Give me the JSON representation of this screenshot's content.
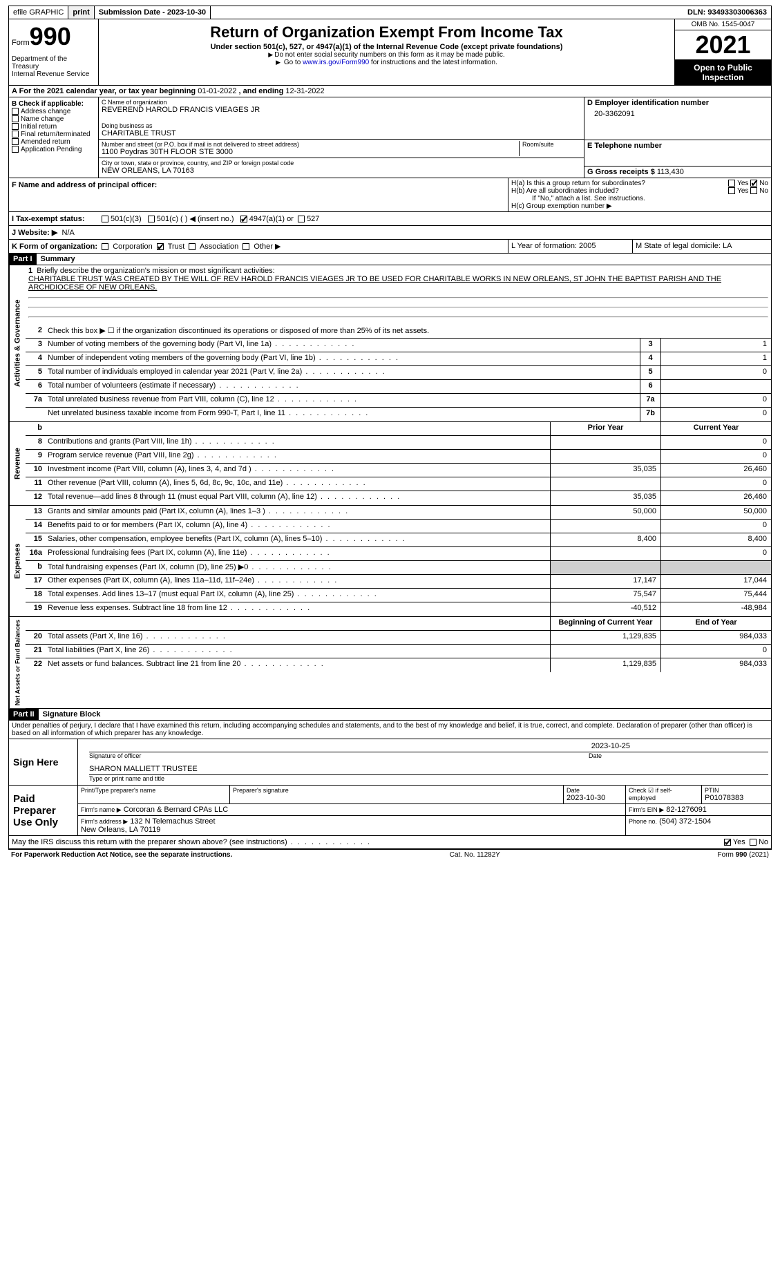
{
  "topbar": {
    "efile": "efile GRAPHIC",
    "print": "print",
    "subdate_lbl": "Submission Date - 2023-10-30",
    "dln": "DLN: 93493303006363"
  },
  "header": {
    "form": "Form",
    "num": "990",
    "dept": "Department of the Treasury\nInternal Revenue Service",
    "title": "Return of Organization Exempt From Income Tax",
    "sub": "Under section 501(c), 527, or 4947(a)(1) of the Internal Revenue Code (except private foundations)",
    "instr1": "Do not enter social security numbers on this form as it may be made public.",
    "instr2_a": "Go to ",
    "instr2_link": "www.irs.gov/Form990",
    "instr2_b": " for instructions and the latest information.",
    "omb": "OMB No. 1545-0047",
    "year": "2021",
    "otp": "Open to Public Inspection"
  },
  "rowA": {
    "label": "A For the 2021 calendar year, or tax year beginning ",
    "begin": "01-01-2022",
    "mid": " , and ending ",
    "end": "12-31-2022"
  },
  "colB": {
    "hdr": "B Check if applicable:",
    "items": [
      "Address change",
      "Name change",
      "Initial return",
      "Final return/terminated",
      "Amended return",
      "Application Pending"
    ]
  },
  "colC": {
    "name_lbl": "C Name of organization",
    "name": "REVEREND HAROLD FRANCIS VIEAGES JR",
    "dba_lbl": "Doing business as",
    "dba": "CHARITABLE TRUST",
    "addr_lbl": "Number and street (or P.O. box if mail is not delivered to street address)",
    "addr": "1100 Poydras 30TH FLOOR STE 3000",
    "room_lbl": "Room/suite",
    "city_lbl": "City or town, state or province, country, and ZIP or foreign postal code",
    "city": "NEW ORLEANS, LA  70163"
  },
  "colD": {
    "ein_lbl": "D Employer identification number",
    "ein": "20-3362091",
    "tel_lbl": "E Telephone number",
    "gross_lbl": "G Gross receipts $",
    "gross": "113,430"
  },
  "rowF": {
    "lbl": "F Name and address of principal officer:"
  },
  "rowH": {
    "a": "H(a)  Is this a group return for subordinates?",
    "b": "H(b)  Are all subordinates included?",
    "note": "If \"No,\" attach a list. See instructions.",
    "c": "H(c)  Group exemption number ▶",
    "yes": "Yes",
    "no": "No"
  },
  "rowI": {
    "lbl": "I   Tax-exempt status:",
    "o1": "501(c)(3)",
    "o2": "501(c) (  ) ◀ (insert no.)",
    "o3": "4947(a)(1) or",
    "o4": "527"
  },
  "rowJ": {
    "lbl": "J   Website: ▶",
    "val": "N/A"
  },
  "rowK": {
    "lbl": "K Form of organization:",
    "o1": "Corporation",
    "o2": "Trust",
    "o3": "Association",
    "o4": "Other ▶",
    "L": "L Year of formation: 2005",
    "M": "M State of legal domicile: LA"
  },
  "part1": {
    "hdr": "Part I",
    "title": "Summary",
    "l1a": "Briefly describe the organization's mission or most significant activities:",
    "l1b": "CHARITABLE TRUST WAS CREATED BY THE WILL OF REV HAROLD FRANCIS VIEAGES JR TO BE USED FOR CHARITABLE WORKS IN NEW ORLEANS, ST JOHN THE BAPTIST PARISH AND THE ARCHDIOCESE OF NEW ORLEANS.",
    "l2": "Check this box ▶ ☐ if the organization discontinued its operations or disposed of more than 25% of its net assets.",
    "lines": [
      {
        "n": "3",
        "t": "Number of voting members of the governing body (Part VI, line 1a)",
        "b": "3",
        "v": "1"
      },
      {
        "n": "4",
        "t": "Number of independent voting members of the governing body (Part VI, line 1b)",
        "b": "4",
        "v": "1"
      },
      {
        "n": "5",
        "t": "Total number of individuals employed in calendar year 2021 (Part V, line 2a)",
        "b": "5",
        "v": "0"
      },
      {
        "n": "6",
        "t": "Total number of volunteers (estimate if necessary)",
        "b": "6",
        "v": ""
      },
      {
        "n": "7a",
        "t": "Total unrelated business revenue from Part VIII, column (C), line 12",
        "b": "7a",
        "v": "0"
      },
      {
        "n": "",
        "t": "Net unrelated business taxable income from Form 990-T, Part I, line 11",
        "b": "7b",
        "v": "0"
      }
    ],
    "colhdr_prior": "Prior Year",
    "colhdr_curr": "Current Year",
    "vtab_ag": "Activities & Governance",
    "vtab_rev": "Revenue",
    "vtab_exp": "Expenses",
    "vtab_na": "Net Assets or Fund Balances",
    "rev": [
      {
        "n": "8",
        "t": "Contributions and grants (Part VIII, line 1h)",
        "p": "",
        "c": "0"
      },
      {
        "n": "9",
        "t": "Program service revenue (Part VIII, line 2g)",
        "p": "",
        "c": "0"
      },
      {
        "n": "10",
        "t": "Investment income (Part VIII, column (A), lines 3, 4, and 7d )",
        "p": "35,035",
        "c": "26,460"
      },
      {
        "n": "11",
        "t": "Other revenue (Part VIII, column (A), lines 5, 6d, 8c, 9c, 10c, and 11e)",
        "p": "",
        "c": "0"
      },
      {
        "n": "12",
        "t": "Total revenue—add lines 8 through 11 (must equal Part VIII, column (A), line 12)",
        "p": "35,035",
        "c": "26,460"
      }
    ],
    "exp": [
      {
        "n": "13",
        "t": "Grants and similar amounts paid (Part IX, column (A), lines 1–3 )",
        "p": "50,000",
        "c": "50,000"
      },
      {
        "n": "14",
        "t": "Benefits paid to or for members (Part IX, column (A), line 4)",
        "p": "",
        "c": "0"
      },
      {
        "n": "15",
        "t": "Salaries, other compensation, employee benefits (Part IX, column (A), lines 5–10)",
        "p": "8,400",
        "c": "8,400"
      },
      {
        "n": "16a",
        "t": "Professional fundraising fees (Part IX, column (A), line 11e)",
        "p": "",
        "c": "0"
      },
      {
        "n": "b",
        "t": "Total fundraising expenses (Part IX, column (D), line 25) ▶0",
        "p": "SHADE",
        "c": "SHADE"
      },
      {
        "n": "17",
        "t": "Other expenses (Part IX, column (A), lines 11a–11d, 11f–24e)",
        "p": "17,147",
        "c": "17,044"
      },
      {
        "n": "18",
        "t": "Total expenses. Add lines 13–17 (must equal Part IX, column (A), line 25)",
        "p": "75,547",
        "c": "75,444"
      },
      {
        "n": "19",
        "t": "Revenue less expenses. Subtract line 18 from line 12",
        "p": "-40,512",
        "c": "-48,984"
      }
    ],
    "colhdr_bcy": "Beginning of Current Year",
    "colhdr_eoy": "End of Year",
    "na": [
      {
        "n": "20",
        "t": "Total assets (Part X, line 16)",
        "p": "1,129,835",
        "c": "984,033"
      },
      {
        "n": "21",
        "t": "Total liabilities (Part X, line 26)",
        "p": "",
        "c": "0"
      },
      {
        "n": "22",
        "t": "Net assets or fund balances. Subtract line 21 from line 20",
        "p": "1,129,835",
        "c": "984,033"
      }
    ]
  },
  "part2": {
    "hdr": "Part II",
    "title": "Signature Block",
    "decl": "Under penalties of perjury, I declare that I have examined this return, including accompanying schedules and statements, and to the best of my knowledge and belief, it is true, correct, and complete. Declaration of preparer (other than officer) is based on all information of which preparer has any knowledge.",
    "sign_here": "Sign Here",
    "sig_lbl": "Signature of officer",
    "date_lbl": "Date",
    "sig_date": "2023-10-25",
    "name_lbl": "Type or print name and title",
    "name": "SHARON MALLIETT TRUSTEE",
    "paid": "Paid Preparer Use Only",
    "p_name_lbl": "Print/Type preparer's name",
    "p_sig_lbl": "Preparer's signature",
    "p_date_lbl": "Date",
    "p_date": "2023-10-30",
    "p_self_lbl": "Check ☑ if self-employed",
    "p_ptin_lbl": "PTIN",
    "p_ptin": "P01078383",
    "firm_lbl": "Firm's name  ▶",
    "firm": "Corcoran & Bernard CPAs LLC",
    "ein_lbl": "Firm's EIN ▶",
    "ein": "82-1276091",
    "addr_lbl": "Firm's address ▶",
    "addr": "132 N Telemachus Street\nNew Orleans, LA  70119",
    "phone_lbl": "Phone no.",
    "phone": "(504) 372-1504",
    "discuss": "May the IRS discuss this return with the preparer shown above? (see instructions)",
    "yes": "Yes",
    "no": "No"
  },
  "footer": {
    "pra": "For Paperwork Reduction Act Notice, see the separate instructions.",
    "cat": "Cat. No. 11282Y",
    "form": "Form 990 (2021)"
  }
}
